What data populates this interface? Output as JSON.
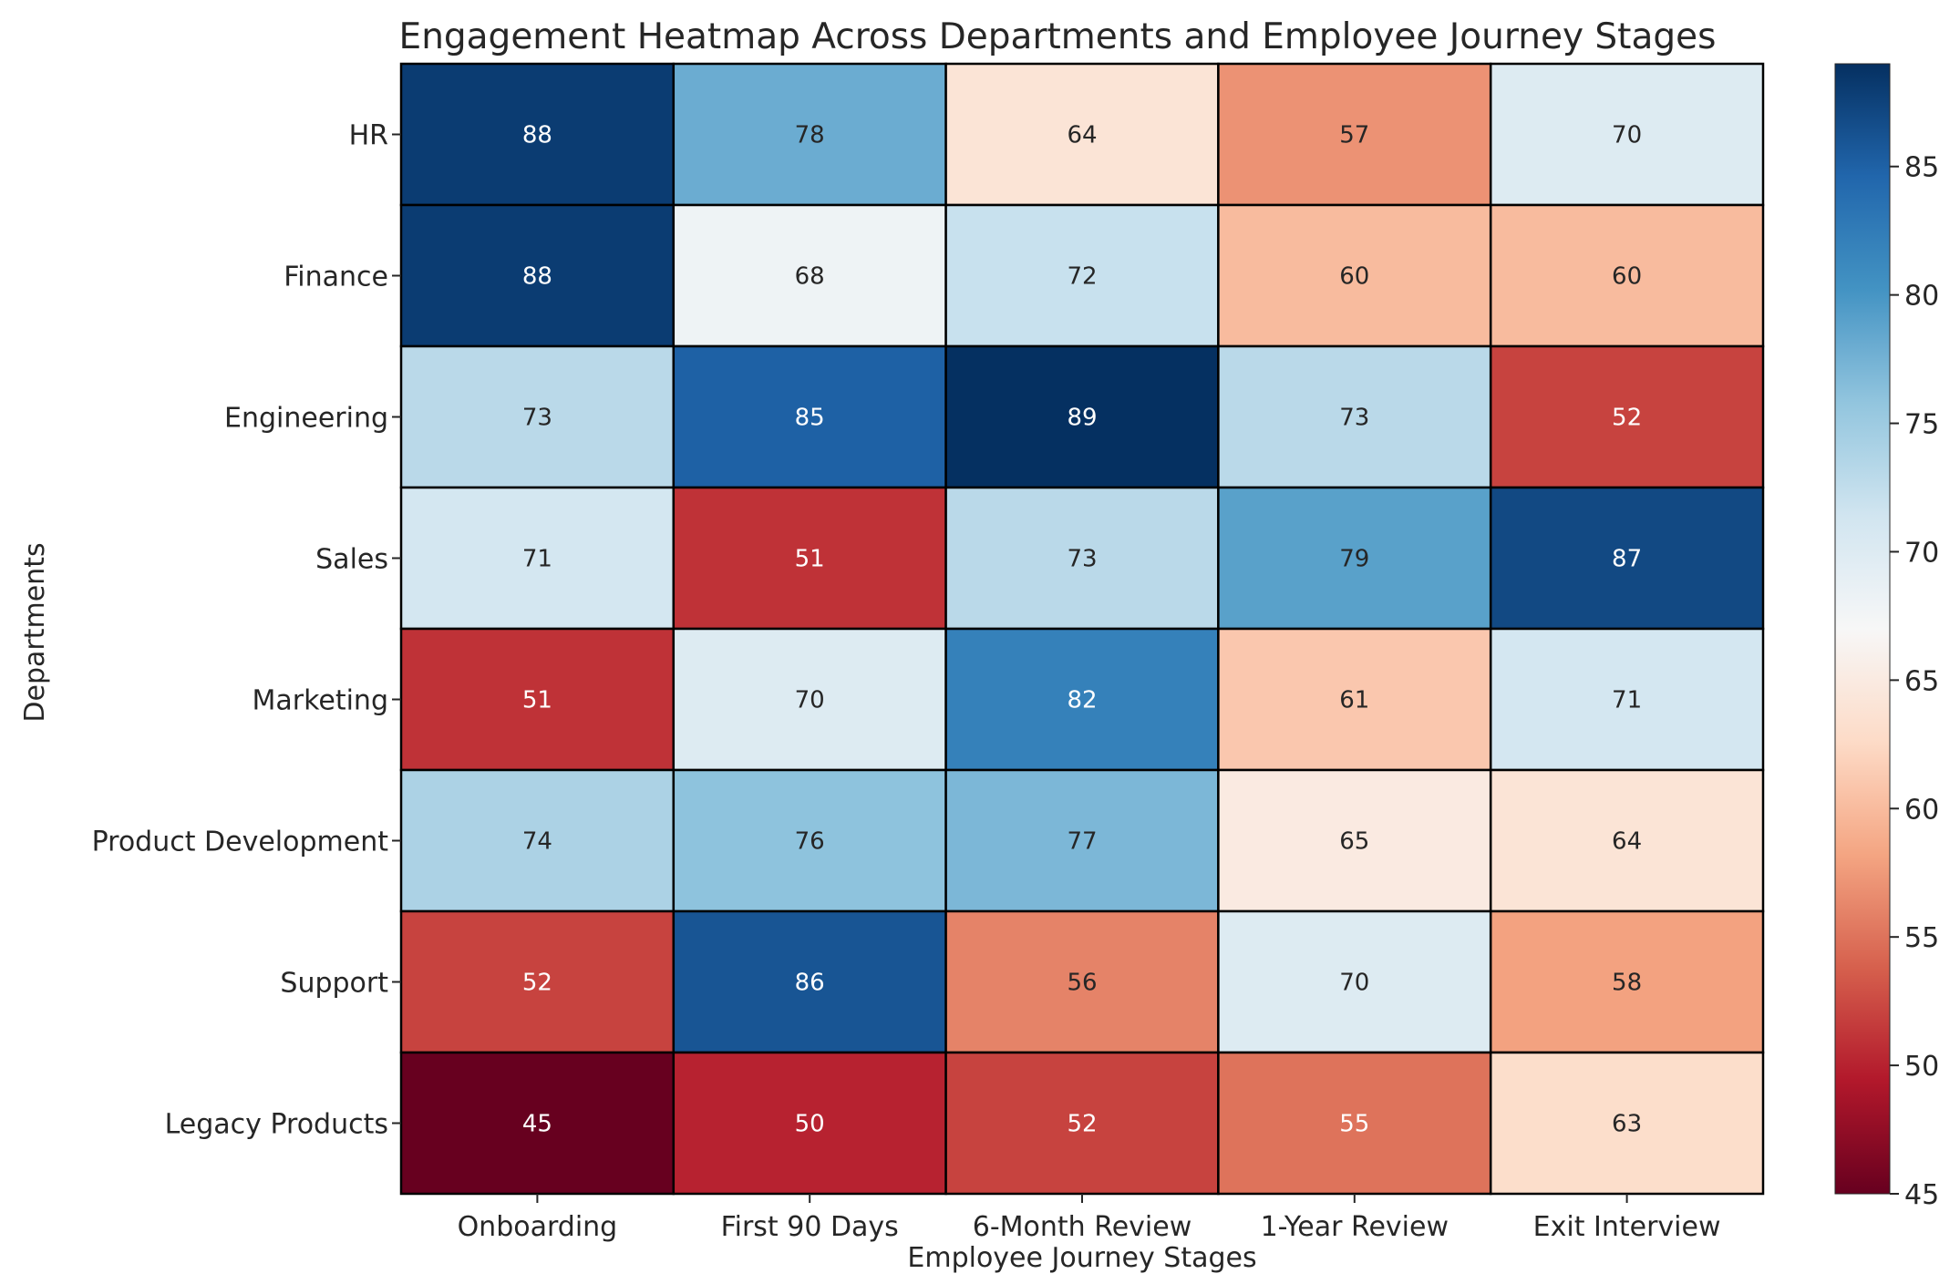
{
  "chart_data": {
    "type": "heatmap",
    "title": "Engagement Heatmap Across Departments and Employee Journey Stages",
    "xlabel": "Employee Journey Stages",
    "ylabel": "Departments",
    "x_categories": [
      "Onboarding",
      "First 90 Days",
      "6-Month Review",
      "1-Year Review",
      "Exit Interview"
    ],
    "y_categories": [
      "HR",
      "Finance",
      "Engineering",
      "Sales",
      "Marketing",
      "Product Development",
      "Support",
      "Legacy Products"
    ],
    "values": [
      [
        88,
        78,
        64,
        57,
        70
      ],
      [
        88,
        68,
        72,
        60,
        60
      ],
      [
        73,
        85,
        89,
        73,
        52
      ],
      [
        71,
        51,
        73,
        79,
        87
      ],
      [
        51,
        70,
        82,
        61,
        71
      ],
      [
        74,
        76,
        77,
        65,
        64
      ],
      [
        52,
        86,
        56,
        70,
        58
      ],
      [
        45,
        50,
        52,
        55,
        63
      ]
    ],
    "colormap": "RdBu",
    "vmin": 45,
    "vmax": 89,
    "colorbar_ticks": [
      45,
      50,
      55,
      60,
      65,
      70,
      75,
      80,
      85
    ],
    "annotated": true,
    "cell_border_color": "#000000"
  }
}
